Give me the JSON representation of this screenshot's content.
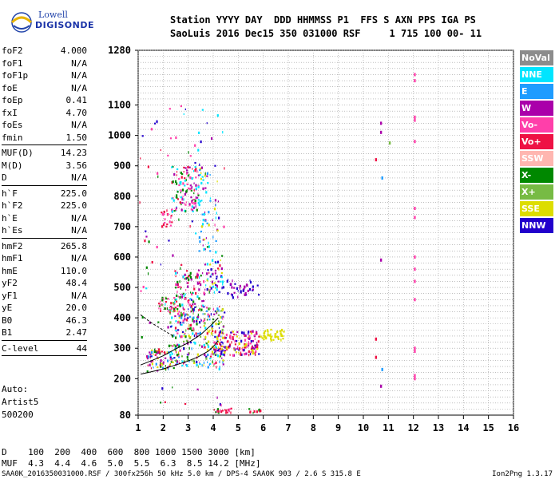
{
  "logo": {
    "company": "Lowell",
    "product": "DIGISONDE"
  },
  "header": {
    "row1": "Station YYYY DAY  DDD HHMMSS P1  FFS S AXN PPS IGA PS",
    "row2": "SaoLuis 2016 Dec15 350 031000 RSF     1 715 100 00- 11"
  },
  "params_group1": [
    {
      "k": "foF2",
      "v": "4.000"
    },
    {
      "k": "foF1",
      "v": "N/A"
    },
    {
      "k": "foF1p",
      "v": "N/A"
    },
    {
      "k": "foE",
      "v": "N/A"
    },
    {
      "k": "foEp",
      "v": "0.41"
    },
    {
      "k": "fxI",
      "v": "4.70"
    },
    {
      "k": "foEs",
      "v": "N/A"
    },
    {
      "k": "fmin",
      "v": "1.50"
    }
  ],
  "params_group2": [
    {
      "k": "MUF(D)",
      "v": "14.23"
    },
    {
      "k": "M(D)",
      "v": "3.56"
    },
    {
      "k": "D",
      "v": "N/A"
    }
  ],
  "params_group3": [
    {
      "k": "h`F",
      "v": "225.0"
    },
    {
      "k": "h`F2",
      "v": "225.0"
    },
    {
      "k": "h`E",
      "v": "N/A"
    },
    {
      "k": "h`Es",
      "v": "N/A"
    }
  ],
  "params_group4": [
    {
      "k": "hmF2",
      "v": "265.8"
    },
    {
      "k": "hmF1",
      "v": "N/A"
    },
    {
      "k": "hmE",
      "v": "110.0"
    },
    {
      "k": "yF2",
      "v": "48.4"
    },
    {
      "k": "yF1",
      "v": "N/A"
    },
    {
      "k": "yE",
      "v": "20.0"
    },
    {
      "k": "B0",
      "v": "46.3"
    },
    {
      "k": "B1",
      "v": "2.47"
    }
  ],
  "params_group5": [
    {
      "k": "C-level",
      "v": "44"
    }
  ],
  "auto": {
    "line1": "Auto:",
    "line2": "Artist5",
    "line3": "500200"
  },
  "legend": [
    {
      "label": "NoVal",
      "color": "#8c8c8c"
    },
    {
      "label": "NNE",
      "color": "#00e5ff"
    },
    {
      "label": "E",
      "color": "#1e9cff"
    },
    {
      "label": "W",
      "color": "#aa00aa"
    },
    {
      "label": "Vo-",
      "color": "#ff3faa"
    },
    {
      "label": "Vo+",
      "color": "#ee1144"
    },
    {
      "label": "SSW",
      "color": "#ffb6b0"
    },
    {
      "label": "X-",
      "color": "#008800"
    },
    {
      "label": "X+",
      "color": "#77bb44"
    },
    {
      "label": "SSE",
      "color": "#dddd00"
    },
    {
      "label": "NNW",
      "color": "#2200cc"
    }
  ],
  "chart_data": {
    "type": "scatter",
    "x_ticks": [
      "1",
      "2",
      "3",
      "4",
      "5",
      "6",
      "7",
      "8",
      "9",
      "10",
      "11",
      "12",
      "13",
      "14",
      "15",
      "16"
    ],
    "xlim": [
      1,
      16
    ],
    "y_ticks": [
      "80",
      "200",
      "300",
      "400",
      "500",
      "600",
      "700",
      "800",
      "900",
      "1000",
      "1100",
      "1280"
    ],
    "y_tick_values": [
      80,
      200,
      300,
      400,
      500,
      600,
      700,
      800,
      900,
      1000,
      1100,
      1280
    ],
    "ylim": [
      80,
      1280
    ],
    "grid": true,
    "trace_o": [
      [
        1.1,
        215
      ],
      [
        1.5,
        222
      ],
      [
        2.0,
        232
      ],
      [
        2.5,
        245
      ],
      [
        3.0,
        258
      ],
      [
        3.4,
        272
      ],
      [
        3.8,
        290
      ],
      [
        4.0,
        305
      ],
      [
        4.2,
        325
      ]
    ],
    "trace_x": [
      [
        1.1,
        245
      ],
      [
        1.5,
        258
      ],
      [
        2.0,
        275
      ],
      [
        2.5,
        298
      ],
      [
        3.0,
        318
      ],
      [
        3.5,
        345
      ],
      [
        3.9,
        375
      ],
      [
        4.2,
        400
      ]
    ],
    "echo_clusters": [
      {
        "x": [
          1.3,
          2.2
        ],
        "y": [
          225,
          300
        ],
        "n": 60,
        "colors": [
          "#008800",
          "#aa00aa",
          "#1e9cff",
          "#ee1144",
          "#dddd00"
        ]
      },
      {
        "x": [
          2.2,
          4.4
        ],
        "y": [
          240,
          440
        ],
        "n": 300,
        "colors": [
          "#ff3faa",
          "#ee1144",
          "#aa00aa",
          "#008800",
          "#00e5ff",
          "#1e9cff",
          "#dddd00",
          "#2200cc",
          "#77bb44"
        ]
      },
      {
        "x": [
          4.0,
          5.8
        ],
        "y": [
          280,
          360
        ],
        "n": 180,
        "colors": [
          "#dddd00",
          "#aa00aa",
          "#ff3faa",
          "#2200cc",
          "#ee1144"
        ]
      },
      {
        "x": [
          5.8,
          6.8
        ],
        "y": [
          330,
          365
        ],
        "n": 45,
        "colors": [
          "#dddd00"
        ]
      },
      {
        "x": [
          1.8,
          2.6
        ],
        "y": [
          420,
          470
        ],
        "n": 40,
        "colors": [
          "#ee1144",
          "#ff3faa",
          "#008800",
          "#77bb44"
        ]
      },
      {
        "x": [
          2.4,
          3.6
        ],
        "y": [
          440,
          560
        ],
        "n": 90,
        "colors": [
          "#ee1144",
          "#008800",
          "#ff3faa",
          "#aa00aa",
          "#00e5ff"
        ]
      },
      {
        "x": [
          3.6,
          4.4
        ],
        "y": [
          480,
          600
        ],
        "n": 50,
        "colors": [
          "#aa00aa",
          "#00e5ff",
          "#dddd00",
          "#2200cc"
        ]
      },
      {
        "x": [
          4.5,
          5.8
        ],
        "y": [
          470,
          530
        ],
        "n": 40,
        "colors": [
          "#aa00aa",
          "#2200cc"
        ]
      },
      {
        "x": [
          1.9,
          2.4
        ],
        "y": [
          700,
          760
        ],
        "n": 20,
        "colors": [
          "#ff3faa",
          "#ee1144"
        ]
      },
      {
        "x": [
          2.3,
          3.4
        ],
        "y": [
          750,
          900
        ],
        "n": 120,
        "colors": [
          "#ff3faa",
          "#ee1144",
          "#aa00aa",
          "#00e5ff",
          "#008800"
        ]
      },
      {
        "x": [
          3.4,
          4.2
        ],
        "y": [
          620,
          900
        ],
        "n": 60,
        "colors": [
          "#00e5ff",
          "#1e9cff",
          "#aa00aa",
          "#dddd00"
        ]
      },
      {
        "x": [
          1.0,
          4.5
        ],
        "y": [
          100,
          1100
        ],
        "n": 110,
        "colors": [
          "#00e5ff",
          "#ff3faa",
          "#aa00aa",
          "#2200cc",
          "#008800",
          "#ee1144"
        ]
      },
      {
        "x": [
          4.0,
          4.8
        ],
        "y": [
          90,
          105
        ],
        "n": 22,
        "colors": [
          "#ee1144",
          "#008800",
          "#ff3faa"
        ]
      },
      {
        "x": [
          5.4,
          5.9
        ],
        "y": [
          90,
          105
        ],
        "n": 10,
        "colors": [
          "#ee1144",
          "#008800"
        ]
      }
    ],
    "spur_points": [
      {
        "x": 12.05,
        "y": [
          1200,
          1180,
          1060,
          1050,
          980,
          760,
          730,
          600,
          560,
          520,
          460,
          300,
          290,
          210,
          200
        ],
        "color": "#ff3faa"
      },
      {
        "x": 10.7,
        "y": [
          1040,
          1010,
          590,
          175
        ],
        "color": "#aa00aa"
      },
      {
        "x": 10.5,
        "y": [
          920,
          330,
          270
        ],
        "color": "#ee1144"
      },
      {
        "x": 10.75,
        "y": [
          860,
          230
        ],
        "color": "#1e9cff"
      },
      {
        "x": 11.05,
        "y": [
          975
        ],
        "color": "#77bb44"
      }
    ]
  },
  "footer": {
    "d_row": "D    100  200  400  600  800 1000 1500 3000 [km]",
    "muf_row": "MUF  4.3  4.4  4.6  5.0  5.5  6.3  8.5 14.2 [MHz]",
    "file_row": "SAA0K_2016350031000.RSF / 300fx256h 50 kHz 5.0 km / DPS-4 SAA0K 903 / 2.6 S 315.8 E",
    "version": "Ion2Png 1.3.17"
  }
}
